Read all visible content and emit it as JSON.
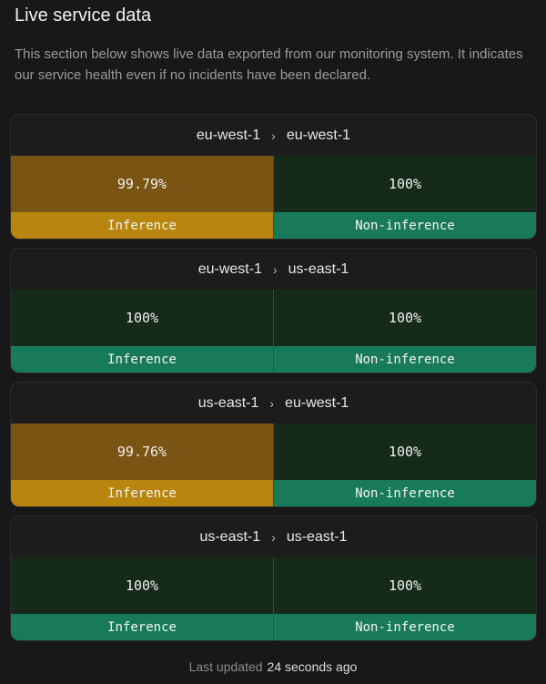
{
  "title": "Live service data",
  "description": "This section below shows live data exported from our monitoring system. It indicates our service health even if no incidents have been declared.",
  "routes": [
    {
      "from": "eu-west-1",
      "to": "eu-west-1",
      "cells": [
        {
          "value": "99.79%",
          "label": "Inference",
          "color": "#7a5412",
          "bar_color": "#b8860f"
        },
        {
          "value": "100%",
          "label": "Non-inference",
          "color": "#162a1a",
          "bar_color": "#197a5a"
        }
      ]
    },
    {
      "from": "eu-west-1",
      "to": "us-east-1",
      "cells": [
        {
          "value": "100%",
          "label": "Inference",
          "color": "#162a1a",
          "bar_color": "#197a5a"
        },
        {
          "value": "100%",
          "label": "Non-inference",
          "color": "#162a1a",
          "bar_color": "#197a5a"
        }
      ]
    },
    {
      "from": "us-east-1",
      "to": "eu-west-1",
      "cells": [
        {
          "value": "99.76%",
          "label": "Inference",
          "color": "#7a5412",
          "bar_color": "#b8860f"
        },
        {
          "value": "100%",
          "label": "Non-inference",
          "color": "#162a1a",
          "bar_color": "#197a5a"
        }
      ]
    },
    {
      "from": "us-east-1",
      "to": "us-east-1",
      "cells": [
        {
          "value": "100%",
          "label": "Inference",
          "color": "#162a1a",
          "bar_color": "#197a5a"
        },
        {
          "value": "100%",
          "label": "Non-inference",
          "color": "#162a1a",
          "bar_color": "#197a5a"
        }
      ]
    }
  ],
  "footer": {
    "label": "Last updated",
    "time": "24 seconds ago"
  }
}
